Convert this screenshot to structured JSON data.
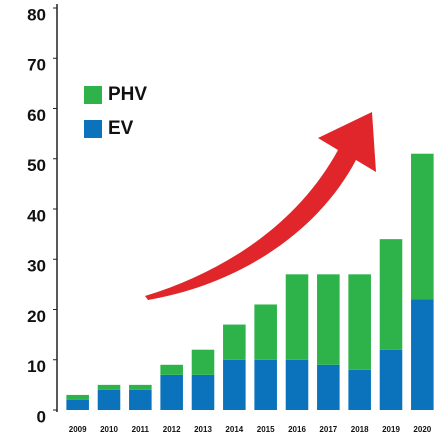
{
  "chart_data": {
    "type": "stacked_bar",
    "categories": [
      "2009",
      "2010",
      "2011",
      "2012",
      "2013",
      "2014",
      "2015",
      "2016",
      "2017",
      "2018",
      "2019",
      "2020"
    ],
    "series": [
      {
        "name": "EV",
        "color": "#0a73bb",
        "values": [
          2,
          4,
          4,
          7,
          7,
          10,
          10,
          10,
          9,
          8,
          12,
          22
        ]
      },
      {
        "name": "PHV",
        "color": "#2db34a",
        "values": [
          1,
          1,
          1,
          2,
          5,
          7,
          11,
          17,
          18,
          19,
          22,
          29
        ]
      }
    ],
    "ylim": [
      0,
      80
    ],
    "yticks": [
      0,
      10,
      20,
      30,
      40,
      50,
      60,
      70,
      80
    ]
  }
}
